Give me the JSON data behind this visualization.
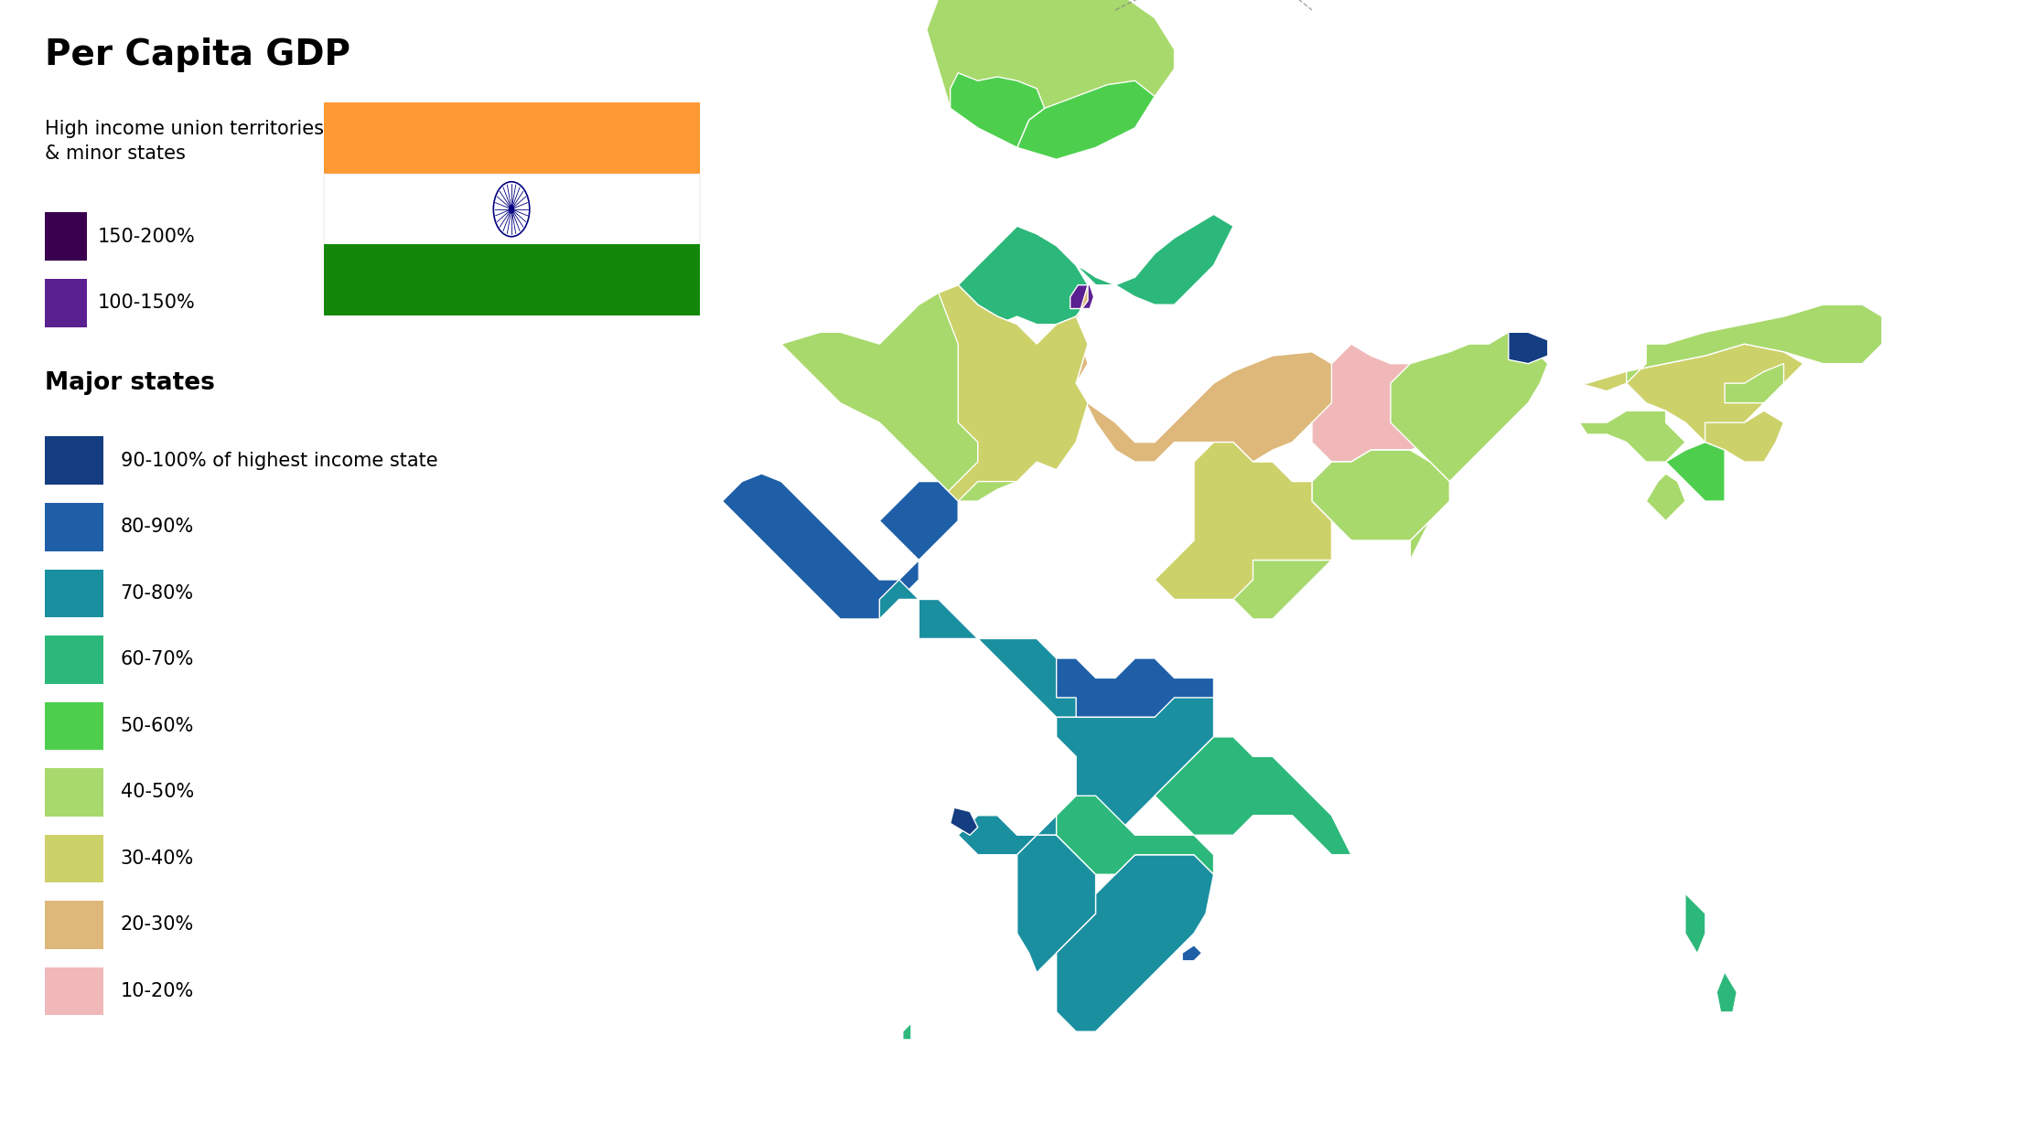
{
  "title": "Per Capita GDP",
  "legend_subtitle_minor": "High income union territories\n& minor states",
  "legend_subtitle_major": "Major states",
  "colors": {
    "90-100%": "#143d82",
    "80-90%": "#1e5fa8",
    "70-80%": "#1a8fa0",
    "60-70%": "#2cb87a",
    "50-60%": "#4dcf4d",
    "40-50%": "#a8d96c",
    "30-40%": "#cdd16a",
    "20-30%": "#ddb87a",
    "10-20%": "#f0b8b8",
    "150-200%": "#3a0050",
    "100-150%": "#5a2090"
  },
  "flag_orange": "#FF9933",
  "flag_green": "#138808",
  "flag_navy": "#000080",
  "background_color": "#ffffff"
}
